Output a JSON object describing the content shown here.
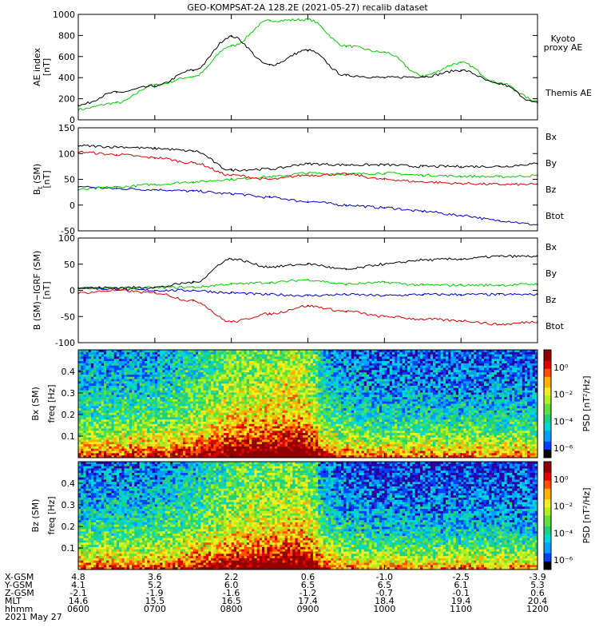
{
  "title": "GEO-KOMPSAT-2A 128.2E (2021-05-27) recalib dataset",
  "colors": {
    "black": "#000000",
    "green": "#00d000",
    "red": "#e00000",
    "blue": "#0000d0",
    "kyoto": "#2ad62a"
  },
  "chart_data": [
    {
      "type": "line",
      "id": "ae",
      "ylabel_main": "AE index",
      "ylabel_unit": "[nT]",
      "ylim": [
        0,
        1000
      ],
      "yticks": [
        0,
        200,
        400,
        600,
        800,
        1000
      ],
      "grid": false,
      "x": [
        "0600",
        "0630",
        "0700",
        "0730",
        "0800",
        "0830",
        "0900",
        "0930",
        "1000",
        "1030",
        "1100",
        "1130",
        "1200"
      ],
      "series": [
        {
          "name": "Kyoto proxy AE",
          "label_lines": [
            "Kyoto",
            "proxy AE"
          ],
          "color": "green",
          "values": [
            100,
            160,
            330,
            410,
            700,
            940,
            950,
            700,
            640,
            420,
            540,
            350,
            180
          ]
        },
        {
          "name": "Themis AE",
          "label_lines": [
            "Themis AE"
          ],
          "color": "black",
          "values": [
            140,
            260,
            320,
            470,
            790,
            520,
            660,
            420,
            400,
            410,
            470,
            340,
            160
          ]
        }
      ]
    },
    {
      "type": "line",
      "id": "bsm",
      "ylabel_main": "B",
      "ylabel_sub": "t",
      "ylabel_tail": " (SM)",
      "ylabel_unit": "[nT]",
      "ylim": [
        -50,
        150
      ],
      "yticks": [
        -50,
        0,
        50,
        100,
        150
      ],
      "grid": false,
      "x": [
        "0600",
        "0630",
        "0700",
        "0730",
        "0800",
        "0830",
        "0900",
        "0930",
        "1000",
        "1030",
        "1100",
        "1130",
        "1200"
      ],
      "legend": [
        {
          "label": "Bx",
          "color": "blue"
        },
        {
          "label": "By",
          "color": "green"
        },
        {
          "label": "Bz",
          "color": "red"
        },
        {
          "label": "Btot",
          "color": "black"
        }
      ],
      "series": [
        {
          "name": "Bx",
          "color": "blue",
          "values": [
            36,
            32,
            30,
            27,
            22,
            15,
            7,
            0,
            -5,
            -12,
            -20,
            -30,
            -38
          ]
        },
        {
          "name": "By",
          "color": "green",
          "values": [
            30,
            35,
            40,
            45,
            50,
            55,
            62,
            60,
            62,
            58,
            56,
            55,
            57
          ]
        },
        {
          "name": "Bz",
          "color": "red",
          "values": [
            103,
            98,
            92,
            82,
            58,
            50,
            58,
            60,
            50,
            45,
            42,
            40,
            40
          ]
        },
        {
          "name": "Btot",
          "color": "black",
          "values": [
            115,
            113,
            110,
            105,
            68,
            70,
            80,
            78,
            78,
            75,
            75,
            75,
            80
          ]
        }
      ]
    },
    {
      "type": "line",
      "id": "bigrf",
      "ylabel_main": "B (SM)−IGRF (SM)",
      "ylabel_unit": "[nT]",
      "ylim": [
        -100,
        100
      ],
      "yticks": [
        -100,
        -50,
        0,
        50,
        100
      ],
      "grid": false,
      "x": [
        "0600",
        "0630",
        "0700",
        "0730",
        "0800",
        "0830",
        "0900",
        "0930",
        "1000",
        "1030",
        "1100",
        "1130",
        "1200"
      ],
      "legend": [
        {
          "label": "Bx",
          "color": "blue"
        },
        {
          "label": "By",
          "color": "green"
        },
        {
          "label": "Bz",
          "color": "red"
        },
        {
          "label": "Btot",
          "color": "black"
        }
      ],
      "series": [
        {
          "name": "Bx",
          "color": "blue",
          "values": [
            5,
            2,
            0,
            0,
            -5,
            -8,
            -10,
            -8,
            -10,
            -8,
            -8,
            -8,
            -8
          ]
        },
        {
          "name": "By",
          "color": "green",
          "values": [
            5,
            4,
            5,
            6,
            12,
            15,
            20,
            12,
            15,
            10,
            10,
            10,
            12
          ]
        },
        {
          "name": "Bz",
          "color": "red",
          "values": [
            -5,
            0,
            -5,
            -20,
            -60,
            -45,
            -30,
            -40,
            -50,
            -55,
            -58,
            -65,
            -60
          ]
        },
        {
          "name": "Btot",
          "color": "black",
          "values": [
            5,
            5,
            6,
            15,
            60,
            45,
            50,
            40,
            50,
            58,
            60,
            65,
            65
          ]
        }
      ]
    },
    {
      "type": "heatmap",
      "id": "bx-psd",
      "ylabel_main": "Bx (SM)",
      "ylabel_unit": "freq [Hz]",
      "ylim": [
        0,
        0.5
      ],
      "yticks": [
        "0.1",
        "0.2",
        "0.3",
        "0.4"
      ],
      "colorbar": {
        "label": "PSD [nT²/Hz]",
        "ticks": [
          "10⁰",
          "10⁻²",
          "10⁻⁴",
          "10⁻⁶"
        ]
      }
    },
    {
      "type": "heatmap",
      "id": "bz-psd",
      "ylabel_main": "Bz (SM)",
      "ylabel_unit": "freq [Hz]",
      "ylim": [
        0,
        0.5
      ],
      "yticks": [
        "0.1",
        "0.2",
        "0.3",
        "0.4"
      ],
      "colorbar": {
        "label": "PSD [nT²/Hz]",
        "ticks": [
          "10⁰",
          "10⁻²",
          "10⁻⁴",
          "10⁻⁶"
        ]
      }
    }
  ],
  "ephemeris": {
    "labels": [
      "X-GSM",
      "Y-GSM",
      "Z-GSM",
      "MLT",
      "hhmm",
      "2021 May 27"
    ],
    "rows": [
      [
        "4.8",
        "3.6",
        "2.2",
        "0.6",
        "-1.0",
        "-2.5",
        "-3.9"
      ],
      [
        "4.1",
        "5.2",
        "6.0",
        "6.5",
        "6.5",
        "6.1",
        "5.3"
      ],
      [
        "-2.1",
        "-1.9",
        "-1.6",
        "-1.2",
        "-0.7",
        "-0.1",
        "0.6"
      ],
      [
        "14.6",
        "15.5",
        "16.5",
        "17.4",
        "18.4",
        "19.4",
        "20.4"
      ],
      [
        "0600",
        "0700",
        "0800",
        "0900",
        "1000",
        "1100",
        "1200"
      ]
    ]
  }
}
